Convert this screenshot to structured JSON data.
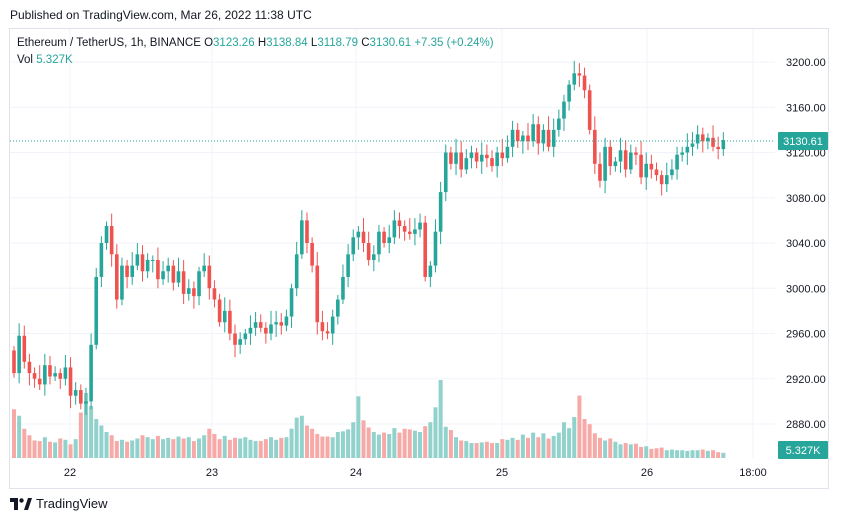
{
  "header": {
    "published": "Published on TradingView.com, Mar 26, 2022 11:38 UTC"
  },
  "legend": {
    "symbol": "Ethereum / TetherUS, 1h, BINANCE",
    "o_label": "O",
    "o": "3123.26",
    "h_label": "H",
    "h": "3138.84",
    "l_label": "L",
    "l": "3118.79",
    "c_label": "C",
    "c": "3130.61",
    "change": "+7.35 (+0.24%)",
    "vol_label": "Vol",
    "vol": "5.327K"
  },
  "footer": {
    "brand": "TradingView"
  },
  "colors": {
    "up": "#26a69a",
    "down": "#ef5350",
    "up_vol": "#92d2cc",
    "down_vol": "#f7a9a7",
    "grid": "#f0f3fa"
  },
  "chart_data": {
    "type": "candlestick",
    "title": "Ethereum / TetherUS, 1h, BINANCE",
    "ylim": [
      2840,
      3225
    ],
    "y_ticks": [
      "3200.00",
      "3160.00",
      "3120.00",
      "3080.00",
      "3040.00",
      "3000.00",
      "2960.00",
      "2920.00",
      "2880.00"
    ],
    "x_ticks": [
      "22",
      "23",
      "24",
      "25",
      "26",
      "18:00"
    ],
    "last_price": "3130.61",
    "last_volume": "5.327K",
    "candles_start_index": 0,
    "closes": [
      2925,
      2958,
      2935,
      2925,
      2920,
      2915,
      2932,
      2922,
      2925,
      2920,
      2930,
      2905,
      2910,
      2898,
      2900,
      2950,
      3010,
      3040,
      3055,
      3030,
      2990,
      3020,
      3010,
      3020,
      3030,
      3015,
      3025,
      3025,
      3008,
      3015,
      3020,
      3005,
      3015,
      2995,
      3000,
      2993,
      3015,
      3020,
      3000,
      2990,
      2970,
      2980,
      2960,
      2950,
      2955,
      2960,
      2965,
      2970,
      2965,
      2960,
      2968,
      2970,
      2967,
      2975,
      3000,
      3030,
      3060,
      3040,
      3020,
      2970,
      2962,
      2960,
      2975,
      2990,
      3010,
      3030,
      3045,
      3050,
      3040,
      3025,
      3030,
      3050,
      3040,
      3045,
      3060,
      3055,
      3050,
      3048,
      3052,
      3058,
      3010,
      3020,
      3050,
      3085,
      3120,
      3110,
      3120,
      3105,
      3115,
      3120,
      3112,
      3118,
      3115,
      3108,
      3120,
      3115,
      3125,
      3140,
      3130,
      3135,
      3130,
      3145,
      3128,
      3140,
      3125,
      3140,
      3150,
      3165,
      3180,
      3190,
      3188,
      3175,
      3140,
      3110,
      3095,
      3125,
      3108,
      3112,
      3122,
      3105,
      3120,
      3118,
      3098,
      3110,
      3105,
      3100,
      3092,
      3100,
      3105,
      3118,
      3120,
      3125,
      3128,
      3136,
      3130,
      3133,
      3125,
      3123,
      3131
    ],
    "volumes": [
      7.5,
      6.5,
      4.5,
      3.5,
      2.7,
      2.6,
      3.2,
      2.5,
      2.4,
      3,
      2.8,
      2.1,
      2.9,
      7,
      10,
      8,
      6,
      5,
      4,
      3.5,
      2.6,
      2.8,
      2.5,
      2.7,
      3,
      3.5,
      3.2,
      2.9,
      3.4,
      2.9,
      3.1,
      2.9,
      3.3,
      3,
      3.2,
      2.6,
      3,
      3.5,
      4.5,
      3.7,
      2.9,
      3.4,
      2.8,
      3.1,
      3,
      3.2,
      2.8,
      2.6,
      2.6,
      2.9,
      3.2,
      2.8,
      3.1,
      3.2,
      4.5,
      6.2,
      6.5,
      5,
      4.5,
      3.7,
      3.3,
      3.3,
      3.2,
      4,
      4.1,
      4.4,
      5.5,
      9.5,
      5.8,
      4.7,
      4,
      3.6,
      3.9,
      3.7,
      4.6,
      3.9,
      4.5,
      4.4,
      4.2,
      4,
      4.9,
      5.5,
      7.8,
      12,
      4.8,
      4.3,
      3.2,
      2.7,
      2.6,
      2.3,
      2.3,
      2.4,
      2.5,
      2.3,
      2.3,
      2.9,
      2.8,
      3.1,
      2.8,
      3.6,
      3.1,
      3.9,
      3.2,
      3.8,
      3,
      3.4,
      3.9,
      5.5,
      4.6,
      6.3,
      9.6,
      6,
      5.2,
      3.8,
      3.1,
      2.7,
      3,
      2.5,
      2.1,
      2.3,
      2.1,
      2.2,
      1.7,
      1.8,
      1.4,
      1.5,
      1.6,
      1.2,
      1.3,
      1.2,
      1.2,
      1.1,
      1.2,
      1.2,
      1.3,
      1.1,
      1.2,
      0.9,
      0.8
    ]
  }
}
